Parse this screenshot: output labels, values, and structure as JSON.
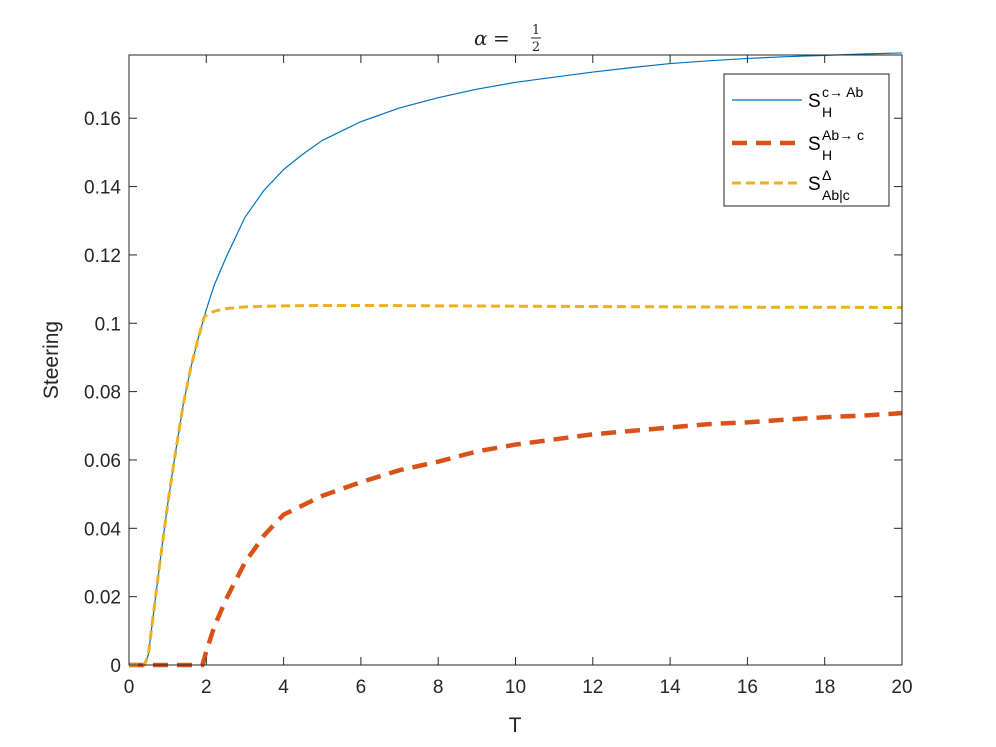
{
  "chart_data": {
    "type": "line",
    "title": {
      "var": "α",
      "eq": "=",
      "num": "1",
      "den": "2"
    },
    "xlabel": "T",
    "ylabel": "Steering",
    "xlim": [
      0,
      20
    ],
    "ylim": [
      0,
      0.1785
    ],
    "xticks": [
      0,
      2,
      4,
      6,
      8,
      10,
      12,
      14,
      16,
      18,
      20
    ],
    "xtick_labels": [
      "0",
      "2",
      "4",
      "6",
      "8",
      "10",
      "12",
      "14",
      "16",
      "18",
      "20"
    ],
    "yticks": [
      0,
      0.02,
      0.04,
      0.06,
      0.08,
      0.1,
      0.12,
      0.14,
      0.16
    ],
    "ytick_labels": [
      "0",
      "0.02",
      "0.04",
      "0.06",
      "0.08",
      "0.1",
      "0.12",
      "0.14",
      "0.16"
    ],
    "grid": false,
    "legend_position": "top-right",
    "series": [
      {
        "legend": {
          "base": "S",
          "sup": "c→ Ab",
          "sub": "H"
        },
        "color": "#0072BD",
        "style": "solid",
        "x": [
          0,
          0.4,
          0.5,
          0.6,
          0.8,
          1.0,
          1.2,
          1.4,
          1.6,
          1.8,
          2.0,
          2.2,
          2.5,
          3.0,
          3.5,
          4.0,
          4.5,
          5.0,
          6.0,
          7.0,
          8.0,
          9.0,
          10.0,
          11.0,
          12.0,
          13.0,
          14.0,
          15.0,
          16.0,
          17.0,
          18.0,
          19.0,
          20.0
        ],
        "y": [
          0,
          0,
          0.003,
          0.012,
          0.03,
          0.047,
          0.062,
          0.076,
          0.087,
          0.096,
          0.104,
          0.111,
          0.119,
          0.131,
          0.139,
          0.145,
          0.1495,
          0.1535,
          0.159,
          0.163,
          0.166,
          0.1685,
          0.1705,
          0.172,
          0.1735,
          0.1748,
          0.176,
          0.1768,
          0.1775,
          0.178,
          0.1784,
          0.1788,
          0.1791
        ]
      },
      {
        "legend": {
          "base": "S",
          "sup": "Ab→ c",
          "sub": "H"
        },
        "color": "#D95319",
        "style": "dashed-thick",
        "x": [
          0,
          1.5,
          1.9,
          2.0,
          2.2,
          2.5,
          3.0,
          3.5,
          4.0,
          5.0,
          6.0,
          7.0,
          8.0,
          9.0,
          10.0,
          11.0,
          12.0,
          13.0,
          14.0,
          15.0,
          16.0,
          17.0,
          18.0,
          19.0,
          20.0
        ],
        "y": [
          0,
          0,
          0,
          0.004,
          0.011,
          0.019,
          0.03,
          0.038,
          0.044,
          0.0495,
          0.0535,
          0.057,
          0.0595,
          0.0625,
          0.0645,
          0.066,
          0.0675,
          0.0685,
          0.0695,
          0.0705,
          0.071,
          0.0718,
          0.0725,
          0.073,
          0.0737
        ]
      },
      {
        "legend": {
          "base": "S",
          "sup": "Δ",
          "sub": "Ab|c"
        },
        "color": "#EDB120",
        "style": "dashed",
        "x": [
          0,
          0.4,
          0.5,
          0.6,
          0.8,
          1.0,
          1.2,
          1.4,
          1.6,
          1.8,
          1.95,
          2.2,
          2.5,
          3.0,
          4.0,
          5.0,
          6.0,
          8.0,
          10.0,
          12.0,
          14.0,
          16.0,
          18.0,
          20.0
        ],
        "y": [
          0,
          0,
          0.003,
          0.012,
          0.03,
          0.047,
          0.062,
          0.076,
          0.087,
          0.096,
          0.102,
          0.1035,
          0.1043,
          0.1048,
          0.1051,
          0.1052,
          0.1052,
          0.1051,
          0.105,
          0.1049,
          0.1048,
          0.1047,
          0.1047,
          0.1046
        ]
      }
    ]
  }
}
